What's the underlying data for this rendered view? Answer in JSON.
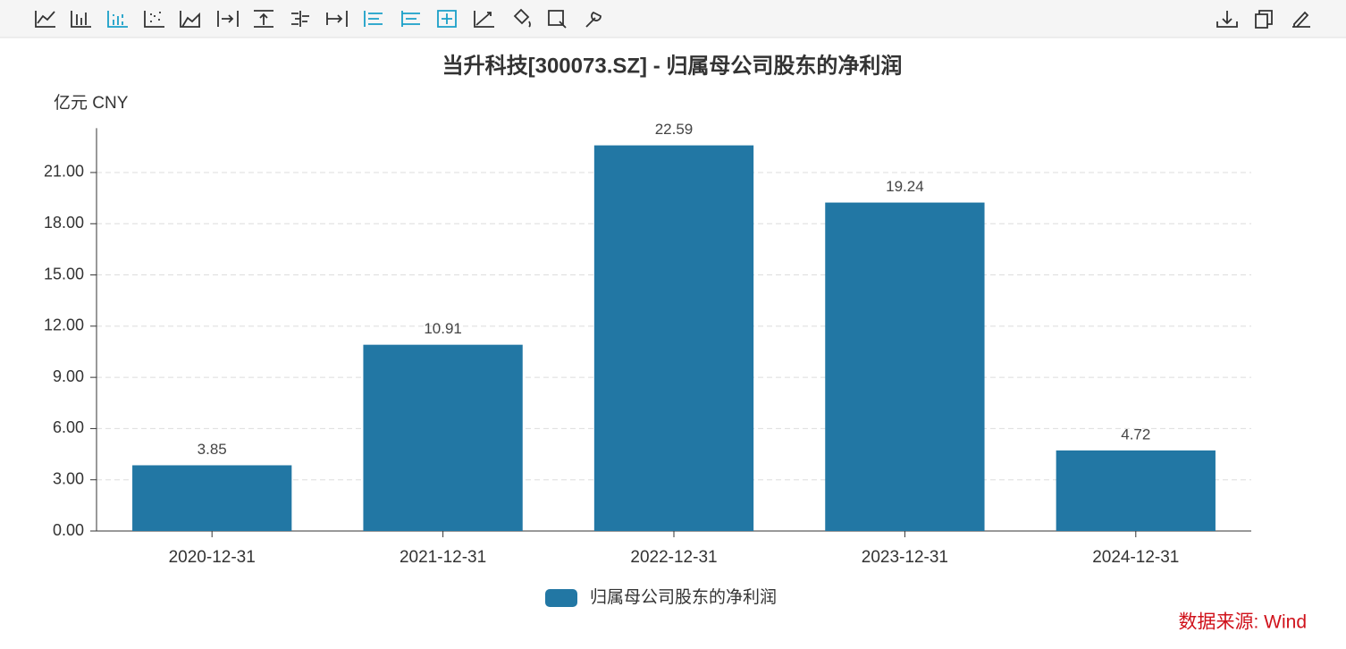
{
  "chart_data": {
    "type": "bar",
    "title": "当升科技[300073.SZ] - 归属母公司股东的净利润",
    "y_axis_label": "亿元  CNY",
    "categories": [
      "2020-12-31",
      "2021-12-31",
      "2022-12-31",
      "2023-12-31",
      "2024-12-31"
    ],
    "series": [
      {
        "name": "归属母公司股东的净利润",
        "color": "#2277a4",
        "values": [
          3.85,
          10.91,
          22.59,
          19.24,
          4.72
        ]
      }
    ],
    "ylim": [
      0,
      23.6
    ],
    "yticks": [
      {
        "value": 0,
        "label": "0.00"
      },
      {
        "value": 3,
        "label": "3.00"
      },
      {
        "value": 6,
        "label": "6.00"
      },
      {
        "value": 9,
        "label": "9.00"
      },
      {
        "value": 12,
        "label": "12.00"
      },
      {
        "value": 15,
        "label": "15.00"
      },
      {
        "value": 18,
        "label": "18.00"
      },
      {
        "value": 21,
        "label": "21.00"
      }
    ],
    "grid": true,
    "legend": "bottom",
    "source": "数据来源: Wind"
  }
}
